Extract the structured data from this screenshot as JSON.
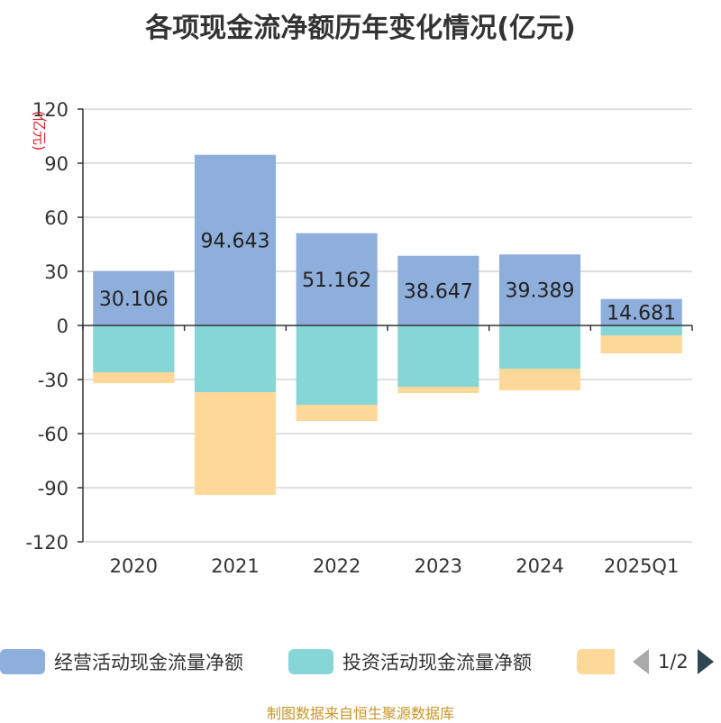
{
  "chart_data": {
    "type": "bar",
    "stacked": true,
    "title": "各项现金流净额历年变化情况(亿元)",
    "ylabel": "(亿元)",
    "xlabel": "",
    "ylim": [
      -120,
      120
    ],
    "yticks": [
      120,
      90,
      60,
      30,
      0,
      -30,
      -60,
      -90,
      -120
    ],
    "categories": [
      "2020",
      "2021",
      "2022",
      "2023",
      "2024",
      "2025Q1"
    ],
    "series": [
      {
        "name": "经营活动现金流量净额",
        "color": "#8eaedc",
        "values": [
          30.106,
          94.643,
          51.162,
          38.647,
          39.389,
          14.681
        ],
        "labels": [
          "30.106",
          "94.643",
          "51.162",
          "38.647",
          "39.389",
          "14.681"
        ]
      },
      {
        "name": "投资活动现金流量净额",
        "color": "#86d6d8",
        "values": [
          -26,
          -37,
          -44,
          -34,
          -24,
          -5.5
        ]
      },
      {
        "name": "",
        "color": "#fdd899",
        "values": [
          -6,
          -57,
          -9,
          -3.5,
          -12,
          -10
        ]
      }
    ],
    "legend_position": "bottom"
  },
  "legend": {
    "items": [
      "经营活动现金流量净额",
      "投资活动现金流量净额",
      ""
    ],
    "page": "1/2"
  },
  "source": "制图数据来自恒生聚源数据库"
}
